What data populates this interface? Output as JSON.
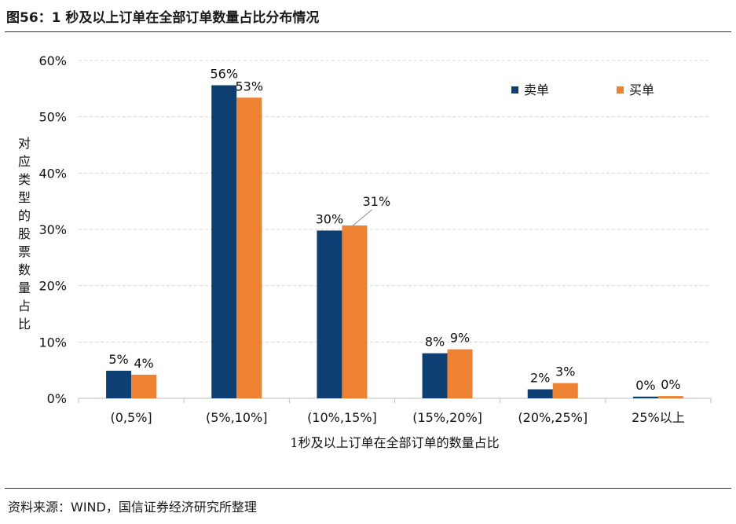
{
  "header": {
    "title": "图56：1 秒及以上订单在全部订单数量占比分布情况"
  },
  "footer": {
    "source": "资料来源：WIND，国信证券经济研究所整理"
  },
  "chart_data": {
    "type": "bar",
    "categories": [
      "(0,5%]",
      "(5%,10%]",
      "(10%,15%]",
      "(15%,20%]",
      "(20%,25%]",
      "25%以上"
    ],
    "series": [
      {
        "name": "卖单",
        "values": [
          4.9,
          55.6,
          29.8,
          8.0,
          1.6,
          0.3
        ],
        "labels": [
          "5%",
          "56%",
          "30%",
          "8%",
          "2%",
          "0%"
        ],
        "color": "#0d3f73"
      },
      {
        "name": "买单",
        "values": [
          4.2,
          53.4,
          30.7,
          8.7,
          2.7,
          0.4
        ],
        "labels": [
          "4%",
          "53%",
          "31%",
          "9%",
          "3%",
          "0%"
        ],
        "color": "#ee8232"
      }
    ],
    "xlabel": "1秒及以上订单在全部订单的数量占比",
    "ylabel": "对应类型的股票数量占比",
    "ylim": [
      0,
      60
    ],
    "yticks": [
      "0%",
      "10%",
      "20%",
      "30%",
      "40%",
      "50%",
      "60%"
    ],
    "grid": true,
    "legend_position": "top-right"
  }
}
